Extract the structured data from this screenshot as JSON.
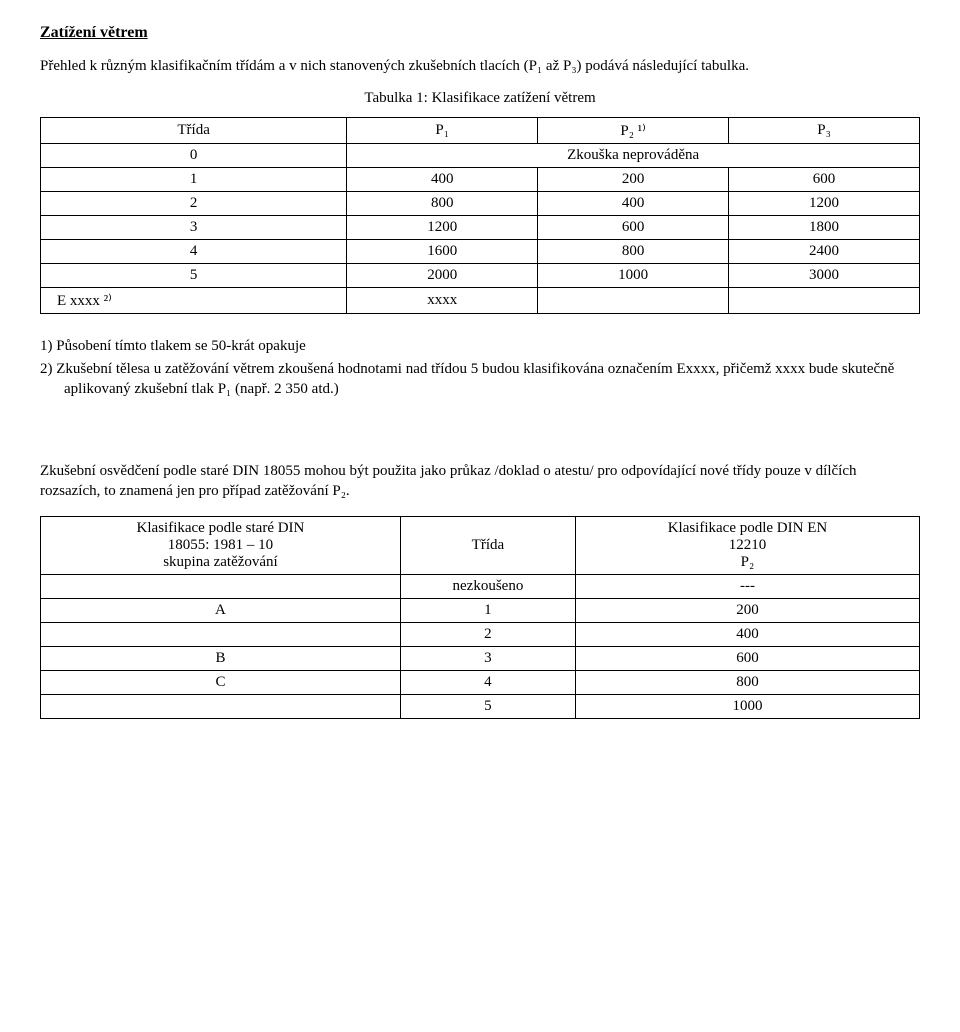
{
  "heading": "Zatížení větrem",
  "intro": "Přehled k různým klasifikačním třídám a v nich stanovených zkušebních tlacích (P₁ až P₃) podává následující tabulka.",
  "table1": {
    "caption": "Tabulka  1:  Klasifikace zatížení větrem",
    "col_trida": "Třída",
    "col_p1": "P₁",
    "col_p2": "P₂ ¹⁾",
    "col_p3": "P₃",
    "row0_class": "0",
    "row0_span": "Zkouška neprováděna",
    "rows": [
      {
        "c": "1",
        "p1": "400",
        "p2": "200",
        "p3": "600"
      },
      {
        "c": "2",
        "p1": "800",
        "p2": "400",
        "p3": "1200"
      },
      {
        "c": "3",
        "p1": "1200",
        "p2": "600",
        "p3": "1800"
      },
      {
        "c": "4",
        "p1": "1600",
        "p2": "800",
        "p3": "2400"
      },
      {
        "c": "5",
        "p1": "2000",
        "p2": "1000",
        "p3": "3000"
      }
    ],
    "exxxx_left": "E xxxx ²⁾",
    "exxxx_p1": "xxxx"
  },
  "notes": {
    "n1": "1)  Působení tímto tlakem se 50-krát opakuje",
    "n2": "2)  Zkušební tělesa u zatěžování větrem zkoušená hodnotami nad třídou 5 budou klasifikována označením Exxxx, přičemž xxxx bude skutečně aplikovaný zkušební tlak P₁ (např. 2 350 atd.)"
  },
  "para2": "Zkušební osvědčení podle staré DIN 18055 mohou být použita jako průkaz /doklad o atestu/ pro odpovídající nové třídy pouze v dílčích rozsazích, to znamená jen pro případ zatěžování P₂.",
  "table2": {
    "hdr_left_l1": "Klasifikace podle staré DIN",
    "hdr_left_l2": "18055: 1981 – 10",
    "hdr_left_l3": "skupina zatěžování",
    "hdr_mid": "Třída",
    "hdr_right_l1": "Klasifikace podle DIN EN",
    "hdr_right_l2": "12210",
    "hdr_right_l3": "P₂",
    "blank_mid": "nezkoušeno",
    "blank_right": "---",
    "rows": [
      {
        "l": "A",
        "m": "1",
        "r": "200"
      },
      {
        "l": "",
        "m": "2",
        "r": "400"
      },
      {
        "l": "B",
        "m": "3",
        "r": "600"
      },
      {
        "l": "C",
        "m": "4",
        "r": "800"
      },
      {
        "l": "",
        "m": "5",
        "r": "1000"
      }
    ]
  }
}
